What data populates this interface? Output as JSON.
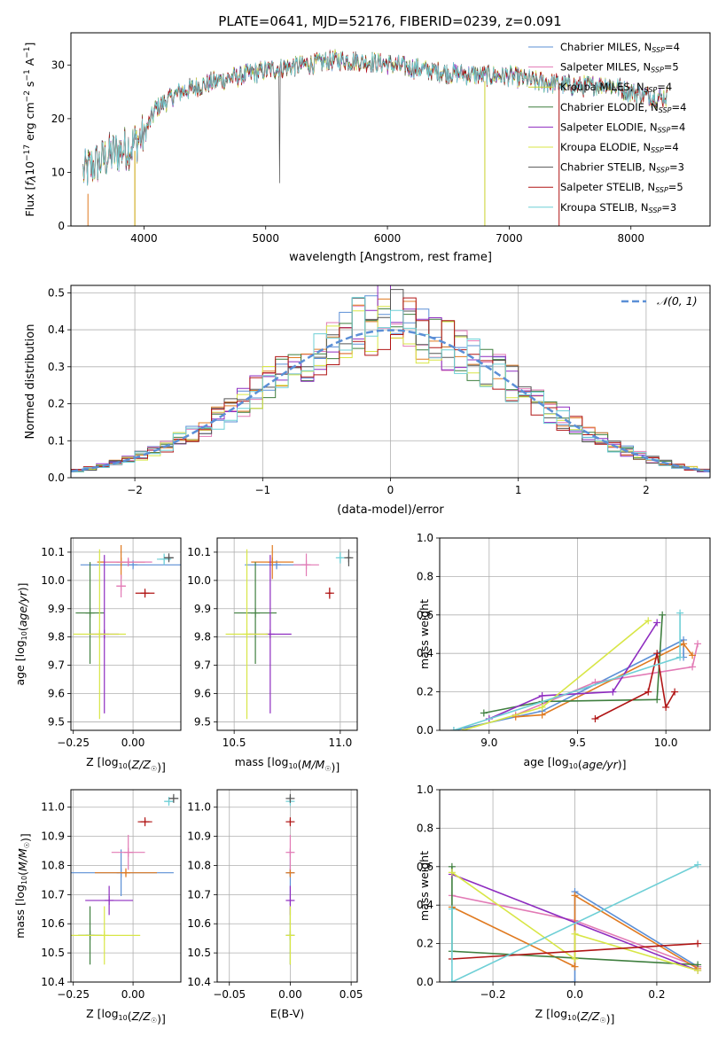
{
  "figure_title": "PLATE=0641, MJD=52176, FIBERID=0239, z=0.091",
  "colors": {
    "chabrier_miles": "#5b8fd6",
    "salpeter_miles": "#e27ab5",
    "kroupa_miles": "#c9d12a",
    "chabrier_elodie": "#3f7f3f",
    "salpeter_elodie": "#8e2cc0",
    "kroupa_elodie": "#d8e646",
    "chabrier_stelib": "#555555",
    "salpeter_stelib": "#b01515",
    "kroupa_stelib": "#6ecfd6",
    "orange_fit": "#e07a20",
    "grid": "#b0b0b0"
  },
  "chart_data": [
    {
      "id": "spectrum",
      "type": "line",
      "title": "",
      "xlabel": "wavelength [Angstrom, rest frame]",
      "ylabel": "Flux [f_λ10^-17 erg cm^-2 s^-1 A^-1]",
      "xlim": [
        3400,
        8650
      ],
      "ylim": [
        0,
        36
      ],
      "xticks": [
        4000,
        5000,
        6000,
        7000,
        8000
      ],
      "yticks": [
        0,
        10,
        20,
        30
      ],
      "grid": false,
      "legend_position": "upper-right",
      "continuum_x": [
        3500,
        3700,
        3900,
        4000,
        4100,
        4300,
        4600,
        5000,
        5300,
        5600,
        5900,
        6200,
        6500,
        6800,
        7000,
        7200,
        7400,
        7600,
        7800,
        8000,
        8200,
        8300
      ],
      "continuum_y": [
        10,
        13,
        15,
        17,
        22,
        25,
        27,
        29,
        30,
        31,
        30.5,
        29.5,
        28.5,
        28,
        28,
        27,
        26.5,
        26,
        26.5,
        25,
        24,
        24
      ],
      "series": [
        {
          "name": "Chabrier MILES, N_SSP=4",
          "color_key": "chabrier_miles"
        },
        {
          "name": "Salpeter MILES, N_SSP=5",
          "color_key": "salpeter_miles"
        },
        {
          "name": "Kroupa MILES, N_SSP=4",
          "color_key": "kroupa_miles"
        },
        {
          "name": "Chabrier ELODIE, N_SSP=4",
          "color_key": "chabrier_elodie"
        },
        {
          "name": "Salpeter ELODIE, N_SSP=4",
          "color_key": "salpeter_elodie"
        },
        {
          "name": "Kroupa ELODIE, N_SSP=4",
          "color_key": "kroupa_elodie"
        },
        {
          "name": "Chabrier STELIB, N_SSP=3",
          "color_key": "chabrier_stelib"
        },
        {
          "name": "Salpeter STELIB, N_SSP=5",
          "color_key": "salpeter_stelib"
        },
        {
          "name": "Kroupa STELIB, N_SSP=3",
          "color_key": "kroupa_stelib"
        }
      ]
    },
    {
      "id": "residuals",
      "type": "bar",
      "xlabel": "(data-model)/error",
      "ylabel": "Normed distribution",
      "xlim": [
        -2.5,
        2.5
      ],
      "ylim": [
        0,
        0.52
      ],
      "xticks": [
        -2,
        -1,
        0,
        1,
        2
      ],
      "yticks": [
        0.0,
        0.1,
        0.2,
        0.3,
        0.4,
        0.5
      ],
      "grid": true,
      "legend": [
        "𝒩(0, 1)"
      ],
      "legend_position": "upper-right",
      "bin_width": 0.1,
      "reference_curve": "normal(0,1)"
    },
    {
      "id": "age_vs_Z",
      "type": "scatter",
      "xlabel": "Z [log10(Z/Z☉)]",
      "ylabel": "age [log10(age/yr)]",
      "xlim": [
        -0.26,
        0.2
      ],
      "ylim": [
        9.47,
        10.15
      ],
      "xticks": [
        -0.25,
        0.0,
        0.25
      ],
      "yticks": [
        9.5,
        9.6,
        9.7,
        9.8,
        9.9,
        10.0,
        10.1
      ],
      "grid": true,
      "points": [
        {
          "color_key": "chabrier_miles",
          "x": 0.0,
          "y": 10.055,
          "xerr": 0.22,
          "yerr": 0.01
        },
        {
          "color_key": "orange_fit",
          "x": -0.05,
          "y": 10.065,
          "xerr": 0.1,
          "yerr": 0.06
        },
        {
          "color_key": "salpeter_miles",
          "x": -0.02,
          "y": 10.065,
          "xerr": 0.1,
          "yerr": 0.01
        },
        {
          "color_key": "salpeter_stelib",
          "x": 0.05,
          "y": 9.955,
          "xerr": 0.04,
          "yerr": 0.01
        },
        {
          "color_key": "chabrier_elodie",
          "x": -0.18,
          "y": 9.885,
          "xerr": 0.06,
          "yerr": 0.18
        },
        {
          "color_key": "salpeter_elodie",
          "x": -0.12,
          "y": 9.81,
          "xerr": 0.06,
          "yerr": 0.28
        },
        {
          "color_key": "kroupa_elodie",
          "x": -0.14,
          "y": 9.81,
          "xerr": 0.11,
          "yerr": 0.3
        },
        {
          "color_key": "salpeter_miles",
          "x": -0.05,
          "y": 9.98,
          "xerr": 0.02,
          "yerr": 0.04
        },
        {
          "color_key": "kroupa_stelib",
          "x": 0.13,
          "y": 10.075,
          "xerr": 0.03,
          "yerr": 0.02
        },
        {
          "color_key": "chabrier_stelib",
          "x": 0.15,
          "y": 10.08,
          "xerr": 0.02,
          "yerr": 0.01
        }
      ]
    },
    {
      "id": "age_vs_mass",
      "type": "scatter",
      "xlabel": "mass [log10(M/M☉)]",
      "xlim": [
        10.42,
        11.08
      ],
      "ylim": [
        9.47,
        10.15
      ],
      "xticks": [
        10.5,
        11.0
      ],
      "yticks": [
        9.5,
        9.6,
        9.7,
        9.8,
        9.9,
        10.0,
        10.1
      ],
      "grid": true,
      "points": [
        {
          "color_key": "chabrier_miles",
          "x": 10.7,
          "y": 10.055,
          "xerr": 0.15,
          "yerr": 0.01
        },
        {
          "color_key": "orange_fit",
          "x": 10.68,
          "y": 10.065,
          "xerr": 0.1,
          "yerr": 0.06
        },
        {
          "color_key": "salpeter_miles",
          "x": 10.84,
          "y": 10.055,
          "xerr": 0.06,
          "yerr": 0.04
        },
        {
          "color_key": "salpeter_stelib",
          "x": 10.95,
          "y": 9.955,
          "xerr": 0.01,
          "yerr": 0.02
        },
        {
          "color_key": "chabrier_elodie",
          "x": 10.6,
          "y": 9.885,
          "xerr": 0.1,
          "yerr": 0.18
        },
        {
          "color_key": "salpeter_elodie",
          "x": 10.67,
          "y": 9.81,
          "xerr": 0.1,
          "yerr": 0.28
        },
        {
          "color_key": "kroupa_elodie",
          "x": 10.56,
          "y": 9.81,
          "xerr": 0.1,
          "yerr": 0.3
        },
        {
          "color_key": "kroupa_stelib",
          "x": 11.0,
          "y": 10.08,
          "xerr": 0.01,
          "yerr": 0.02
        },
        {
          "color_key": "chabrier_stelib",
          "x": 11.04,
          "y": 10.08,
          "xerr": 0.01,
          "yerr": 0.03
        }
      ]
    },
    {
      "id": "weight_vs_age",
      "type": "line",
      "xlabel": "age [log10(age/yr)]",
      "ylabel": "mass weight",
      "xlim": [
        8.72,
        10.25
      ],
      "ylim": [
        0,
        1
      ],
      "xticks": [
        9.0,
        9.5,
        10.0
      ],
      "yticks": [
        0.0,
        0.2,
        0.4,
        0.6,
        0.8,
        1.0
      ],
      "grid": true,
      "series": [
        {
          "color_key": "chabrier_miles",
          "x": [
            8.8,
            9.3,
            10.1,
            10.1
          ],
          "y": [
            0.0,
            0.1,
            0.47,
            0.38
          ]
        },
        {
          "color_key": "salpeter_miles",
          "x": [
            9.15,
            9.6,
            10.15,
            10.18
          ],
          "y": [
            0.08,
            0.25,
            0.33,
            0.45
          ]
        },
        {
          "color_key": "orange_fit",
          "x": [
            9.15,
            9.3,
            10.1,
            10.15
          ],
          "y": [
            0.07,
            0.08,
            0.45,
            0.39
          ]
        },
        {
          "color_key": "chabrier_elodie",
          "x": [
            8.97,
            9.3,
            9.95,
            9.98
          ],
          "y": [
            0.09,
            0.15,
            0.16,
            0.6
          ]
        },
        {
          "color_key": "salpeter_elodie",
          "x": [
            9.0,
            9.3,
            9.7,
            9.95
          ],
          "y": [
            0.06,
            0.18,
            0.2,
            0.56
          ]
        },
        {
          "color_key": "kroupa_elodie",
          "x": [
            8.85,
            9.3,
            9.9
          ],
          "y": [
            0.0,
            0.12,
            0.57
          ]
        },
        {
          "color_key": "salpeter_stelib",
          "x": [
            9.6,
            9.9,
            9.95,
            10.0,
            10.05
          ],
          "y": [
            0.06,
            0.2,
            0.4,
            0.12,
            0.2
          ]
        },
        {
          "color_key": "kroupa_stelib",
          "x": [
            8.8,
            10.08,
            10.08
          ],
          "y": [
            0.0,
            0.38,
            0.61
          ]
        }
      ]
    },
    {
      "id": "mass_vs_Z",
      "type": "scatter",
      "xlabel": "Z [log10(Z/Z☉)]",
      "ylabel": "mass [log10(M/M☉)]",
      "xlim": [
        -0.26,
        0.2
      ],
      "ylim": [
        10.4,
        11.06
      ],
      "xticks": [
        -0.25,
        0.0,
        0.25
      ],
      "yticks": [
        10.4,
        10.5,
        10.6,
        10.7,
        10.8,
        10.9,
        11.0
      ],
      "grid": true,
      "points": [
        {
          "color_key": "chabrier_miles",
          "x": -0.05,
          "y": 10.775,
          "xerr": 0.22,
          "yerr": 0.08
        },
        {
          "color_key": "orange_fit",
          "x": -0.03,
          "y": 10.775,
          "xerr": 0.13,
          "yerr": 0.01
        },
        {
          "color_key": "salpeter_miles",
          "x": -0.02,
          "y": 10.845,
          "xerr": 0.07,
          "yerr": 0.06
        },
        {
          "color_key": "salpeter_stelib",
          "x": 0.05,
          "y": 10.95,
          "xerr": 0.03,
          "yerr": 0.01
        },
        {
          "color_key": "chabrier_elodie",
          "x": -0.18,
          "y": 10.56,
          "xerr": 0.05,
          "yerr": 0.1
        },
        {
          "color_key": "salpeter_elodie",
          "x": -0.1,
          "y": 10.68,
          "xerr": 0.1,
          "yerr": 0.05
        },
        {
          "color_key": "kroupa_elodie",
          "x": -0.12,
          "y": 10.56,
          "xerr": 0.15,
          "yerr": 0.1
        },
        {
          "color_key": "kroupa_stelib",
          "x": 0.15,
          "y": 11.02,
          "xerr": 0.02,
          "yerr": 0.01
        },
        {
          "color_key": "chabrier_stelib",
          "x": 0.17,
          "y": 11.03,
          "xerr": 0.02,
          "yerr": 0.01
        }
      ]
    },
    {
      "id": "mass_vs_ebv",
      "type": "scatter",
      "xlabel": "E(B-V)",
      "xlim": [
        -0.06,
        0.055
      ],
      "ylim": [
        10.4,
        11.06
      ],
      "xticks": [
        -0.05,
        0.0,
        0.05
      ],
      "yticks": [
        10.4,
        10.5,
        10.6,
        10.7,
        10.8,
        10.9,
        11.0
      ],
      "grid": true,
      "points": [
        {
          "color_key": "chabrier_miles",
          "x": 0.0,
          "y": 10.775,
          "xerr": 0.0,
          "yerr": 0.08
        },
        {
          "color_key": "orange_fit",
          "x": 0.0,
          "y": 10.775,
          "xerr": 0.0,
          "yerr": 0.01
        },
        {
          "color_key": "salpeter_miles",
          "x": 0.0,
          "y": 10.845,
          "xerr": 0.0,
          "yerr": 0.06
        },
        {
          "color_key": "salpeter_stelib",
          "x": 0.0,
          "y": 10.95,
          "xerr": 0.0,
          "yerr": 0.01
        },
        {
          "color_key": "chabrier_elodie",
          "x": 0.0,
          "y": 10.56,
          "xerr": 0.0,
          "yerr": 0.1
        },
        {
          "color_key": "salpeter_elodie",
          "x": 0.0,
          "y": 10.68,
          "xerr": 0.0,
          "yerr": 0.05
        },
        {
          "color_key": "kroupa_elodie",
          "x": 0.0,
          "y": 10.56,
          "xerr": 0.0,
          "yerr": 0.1
        },
        {
          "color_key": "kroupa_stelib",
          "x": 0.0,
          "y": 11.02,
          "xerr": 0.0,
          "yerr": 0.01
        },
        {
          "color_key": "chabrier_stelib",
          "x": 0.0,
          "y": 11.03,
          "xerr": 0.0,
          "yerr": 0.01
        }
      ]
    },
    {
      "id": "weight_vs_Z",
      "type": "line",
      "xlabel": "Z [log10(Z/Z☉)]",
      "ylabel": "mass weight",
      "xlim": [
        -0.33,
        0.33
      ],
      "ylim": [
        0,
        1
      ],
      "xticks": [
        -0.2,
        0.0,
        0.2
      ],
      "yticks": [
        0.0,
        0.2,
        0.4,
        0.6,
        0.8,
        1.0
      ],
      "grid": true,
      "series": [
        {
          "color_key": "chabrier_miles",
          "x": [
            -0.3,
            0.0,
            0.0,
            0.3
          ],
          "y": [
            0.0,
            0.0,
            0.47,
            0.08
          ]
        },
        {
          "color_key": "salpeter_miles",
          "x": [
            -0.3,
            0.0,
            0.3
          ],
          "y": [
            0.45,
            0.32,
            0.08
          ]
        },
        {
          "color_key": "orange_fit",
          "x": [
            -0.3,
            0.0,
            0.0,
            0.3
          ],
          "y": [
            0.39,
            0.08,
            0.45,
            0.07
          ]
        },
        {
          "color_key": "chabrier_elodie",
          "x": [
            -0.3,
            -0.3,
            0.3
          ],
          "y": [
            0.6,
            0.16,
            0.09
          ]
        },
        {
          "color_key": "salpeter_elodie",
          "x": [
            -0.3,
            0.3
          ],
          "y": [
            0.56,
            0.06
          ]
        },
        {
          "color_key": "kroupa_elodie",
          "x": [
            -0.3,
            0.0,
            0.0,
            0.3
          ],
          "y": [
            0.57,
            0.12,
            0.25,
            0.06
          ]
        },
        {
          "color_key": "salpeter_stelib",
          "x": [
            -0.3,
            0.3
          ],
          "y": [
            0.12,
            0.2
          ]
        },
        {
          "color_key": "kroupa_stelib",
          "x": [
            -0.3,
            -0.3,
            0.3
          ],
          "y": [
            0.38,
            0.0,
            0.61
          ]
        }
      ]
    }
  ]
}
